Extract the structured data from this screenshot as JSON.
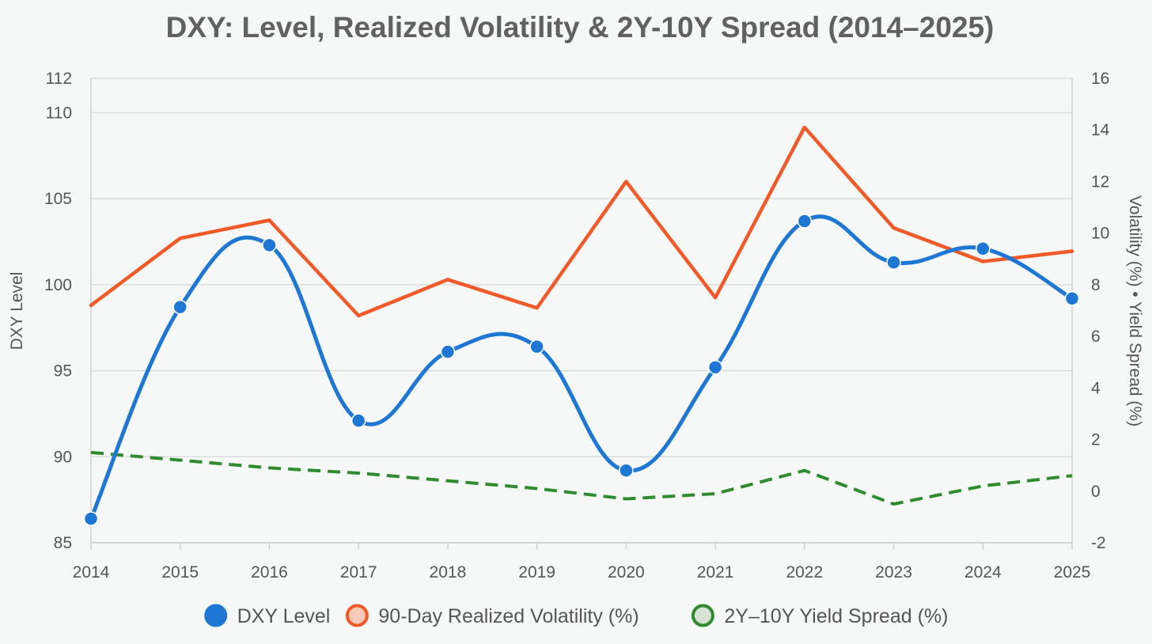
{
  "chart_data": {
    "type": "line",
    "title": "DXY: Level, Realized Volatility & 2Y-10Y Spread (2014–2025)",
    "x": [
      "2014",
      "2015",
      "2016",
      "2017",
      "2018",
      "2019",
      "2020",
      "2021",
      "2022",
      "2023",
      "2024",
      "2025"
    ],
    "y_left": {
      "label": "DXY Level",
      "range": [
        85,
        112
      ],
      "ticks": [
        85,
        90,
        95,
        100,
        105,
        110,
        112
      ]
    },
    "y_right": {
      "label": "Volatility (%) • Yield Spread (%)",
      "range": [
        -2,
        16
      ],
      "ticks": [
        -2,
        0,
        2,
        4,
        6,
        8,
        10,
        12,
        14,
        16
      ]
    },
    "grid": true,
    "legend_position": "bottom",
    "series": [
      {
        "name": "DXY Level",
        "axis": "left",
        "style": "smooth",
        "markers": true,
        "color": "#1f77d4",
        "values": [
          86.4,
          98.7,
          102.3,
          92.1,
          96.1,
          96.4,
          89.2,
          95.2,
          103.7,
          101.3,
          102.1,
          99.2
        ]
      },
      {
        "name": "90-Day Realized Volatility (%)",
        "axis": "right",
        "style": "solid",
        "markers": false,
        "color": "#f05a28",
        "values": [
          7.2,
          9.8,
          10.5,
          6.8,
          8.2,
          7.1,
          12.0,
          7.5,
          14.1,
          10.2,
          8.9,
          9.3
        ]
      },
      {
        "name": "2Y–10Y Yield Spread (%)",
        "axis": "right",
        "style": "dashed",
        "markers": false,
        "color": "#2e8b2e",
        "values": [
          1.5,
          1.2,
          0.9,
          0.7,
          0.4,
          0.1,
          -0.3,
          -0.1,
          0.8,
          -0.5,
          0.2,
          0.6
        ]
      }
    ]
  }
}
